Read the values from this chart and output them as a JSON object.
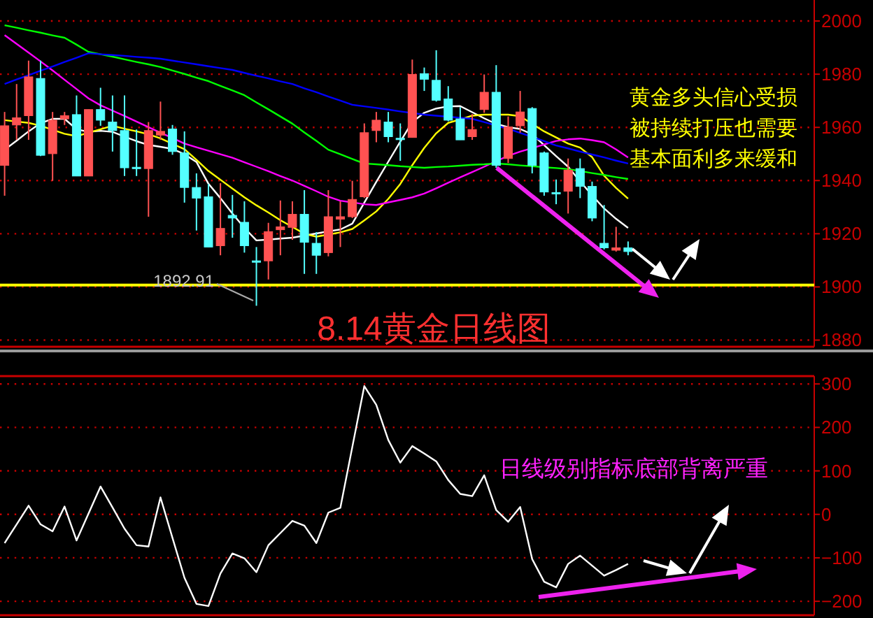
{
  "chart_data": [
    {
      "type": "candlestick",
      "title": "8.14黄金日线图",
      "categories": [
        null,
        null,
        null,
        null,
        null,
        null,
        null,
        null,
        null,
        null,
        null,
        null,
        null,
        null,
        null,
        null,
        null,
        null,
        null,
        null,
        null,
        null,
        null,
        null,
        null,
        null,
        null,
        null,
        null,
        null,
        null,
        null,
        null,
        null,
        null,
        null,
        null,
        null,
        null,
        null,
        null,
        null,
        null,
        null,
        null,
        null,
        null,
        null,
        null,
        null,
        null,
        null,
        null
      ],
      "ohlc": [
        [
          1945.7,
          1965.8,
          1934.3,
          1960.6
        ],
        [
          1960.9,
          1976.3,
          1955.3,
          1963.6
        ],
        [
          1964.4,
          1985.1,
          1955.3,
          1979.0
        ],
        [
          1978.4,
          1985.1,
          1949.2,
          1949.5
        ],
        [
          1950.1,
          1965.8,
          1939.9,
          1962.7
        ],
        [
          1963.2,
          1965.8,
          1960.9,
          1964.4
        ],
        [
          1964.8,
          1972.0,
          1941.7,
          1941.7
        ],
        [
          1941.7,
          1966.7,
          1941.7,
          1966.7
        ],
        [
          1966.7,
          1974.9,
          1960.6,
          1962.7
        ],
        [
          1962.0,
          1972.0,
          1950.9,
          1958.8
        ],
        [
          1958.8,
          1972.0,
          1941.7,
          1944.8
        ],
        [
          1945.0,
          1959.2,
          1941.7,
          1944.8
        ],
        [
          1944.5,
          1962.0,
          1926.4,
          1958.8
        ],
        [
          1957.1,
          1969.7,
          1955.3,
          1958.5
        ],
        [
          1959.4,
          1960.9,
          1949.7,
          1950.9
        ],
        [
          1950.4,
          1958.5,
          1931.7,
          1937.4
        ],
        [
          1937.4,
          1942.7,
          1921.2,
          1933.4
        ],
        [
          1933.9,
          1938.7,
          1915.0,
          1915.0
        ],
        [
          1915.5,
          1939.0,
          1911.9,
          1922.0
        ],
        [
          1926.9,
          1934.6,
          1918.5,
          1925.9
        ],
        [
          1924.3,
          1932.2,
          1912.9,
          1915.5
        ],
        [
          1909.8,
          1915.0,
          1892.91,
          1909.4
        ],
        [
          1909.8,
          1924.1,
          1902.8,
          1920.8
        ],
        [
          1921.5,
          1932.5,
          1911.9,
          1922.6
        ],
        [
          1922.4,
          1932.2,
          1917.7,
          1927.3
        ],
        [
          1927.3,
          1936.4,
          1904.9,
          1916.8
        ],
        [
          1916.4,
          1920.6,
          1904.9,
          1911.9
        ],
        [
          1912.9,
          1936.4,
          1911.5,
          1926.4
        ],
        [
          1925.5,
          1932.2,
          1915.0,
          1926.4
        ],
        [
          1926.4,
          1939.9,
          1925.9,
          1932.9
        ],
        [
          1933.9,
          1961.5,
          1933.4,
          1958.0
        ],
        [
          1958.8,
          1965.8,
          1954.4,
          1962.7
        ],
        [
          1962.0,
          1965.8,
          1954.4,
          1956.5
        ],
        [
          1955.9,
          1961.5,
          1947.4,
          1955.7
        ],
        [
          1956.2,
          1985.5,
          1956.2,
          1979.9
        ],
        [
          1980.2,
          1982.5,
          1973.7,
          1978.1
        ],
        [
          1977.7,
          1989.0,
          1969.7,
          1970.2
        ],
        [
          1970.7,
          1975.5,
          1962.3,
          1962.7
        ],
        [
          1963.2,
          1967.6,
          1955.3,
          1955.3
        ],
        [
          1956.5,
          1965.0,
          1955.3,
          1959.2
        ],
        [
          1966.7,
          1979.9,
          1965.5,
          1973.2
        ],
        [
          1973.2,
          1983.4,
          1944.8,
          1945.7
        ],
        [
          1948.3,
          1964.1,
          1946.6,
          1960.2
        ],
        [
          1960.6,
          1973.7,
          1958.0,
          1965.8
        ],
        [
          1967.1,
          1967.6,
          1942.7,
          1945.7
        ],
        [
          1950.4,
          1950.9,
          1934.3,
          1935.7
        ],
        [
          1935.5,
          1940.4,
          1931.1,
          1935.3
        ],
        [
          1936.0,
          1948.3,
          1927.6,
          1943.9
        ],
        [
          1944.5,
          1948.3,
          1933.4,
          1937.8
        ],
        [
          1937.8,
          1939.6,
          1924.7,
          1925.9
        ],
        [
          1916.4,
          1930.8,
          1914.1,
          1914.7
        ],
        [
          1913.8,
          1922.6,
          1913.3,
          1914.7
        ],
        [
          1914.7,
          1917.1,
          1911.9,
          1913.3
        ]
      ],
      "colors": [
        "#ff5252",
        "#ff5252",
        "#ff5252",
        "#54ffff",
        "#ff5252",
        "#ff5252",
        "#54ffff",
        "#ff5252",
        "#54ffff",
        "#54ffff",
        "#54ffff",
        "#54ffff",
        "#ff5252",
        "#ff5252",
        "#54ffff",
        "#54ffff",
        "#54ffff",
        "#54ffff",
        "#ff5252",
        "#54ffff",
        "#54ffff",
        "#54ffff",
        "#ff5252",
        "#ff5252",
        "#ff5252",
        "#54ffff",
        "#54ffff",
        "#ff5252",
        "#ff5252",
        "#ff5252",
        "#ff5252",
        "#ff5252",
        "#54ffff",
        "#54ffff",
        "#ff5252",
        "#54ffff",
        "#54ffff",
        "#54ffff",
        "#54ffff",
        "#ff5252",
        "#ff5252",
        "#54ffff",
        "#ff5252",
        "#ff5252",
        "#54ffff",
        "#54ffff",
        "#54ffff",
        "#ff5252",
        "#54ffff",
        "#54ffff",
        "#54ffff",
        "#ff5252",
        "#54ffff"
      ],
      "series": [
        {
          "type": "line",
          "color": "#ffffff",
          "values": [
            1951.6,
            1955.0,
            1958.5,
            1961.6,
            1963.2,
            1963.2,
            1959.3,
            1958.3,
            1958.7,
            1958.3,
            1956.5,
            1954.8,
            1953.4,
            1952.7,
            1951.9,
            1949.9,
            1947.0,
            1938.8,
            1933.4,
            1927.6,
            1922.2,
            1917.5,
            1917.8,
            1918.2,
            1918.5,
            1919.3,
            1920.1,
            1920.9,
            1921.6,
            1923.8,
            1931.7,
            1939.5,
            1947.1,
            1954.6,
            1962.0,
            1965.5,
            1967.1,
            1967.9,
            1968.0,
            1965.7,
            1963.4,
            1961.3,
            1960.1,
            1959.4,
            1957.4,
            1953.3,
            1949.2,
            1945.2,
            1939.7,
            1934.5,
            1929.5,
            1925.6,
            1922.2
          ]
        },
        {
          "type": "line",
          "color": "#ffff00",
          "values": [
            1962.7,
            1962.2,
            1961.7,
            1960.6,
            1959.1,
            1957.6,
            1956.7,
            1958.0,
            1959.3,
            1960.6,
            1959.5,
            1958.5,
            1957.4,
            1955.9,
            1953.8,
            1951.8,
            1947.8,
            1943.6,
            1940.3,
            1937.0,
            1933.7,
            1930.7,
            1928.0,
            1925.1,
            1922.6,
            1920.0,
            1918.9,
            1919.7,
            1920.5,
            1921.8,
            1925.0,
            1928.4,
            1933.1,
            1938.7,
            1945.8,
            1952.3,
            1957.8,
            1961.7,
            1963.0,
            1964.4,
            1964.8,
            1964.8,
            1964.8,
            1964.2,
            1961.3,
            1958.5,
            1956.2,
            1953.9,
            1952.4,
            1948.8,
            1941.8,
            1937.2,
            1933.2
          ]
        },
        {
          "type": "line",
          "color": "#ff00ff",
          "values": [
            1994.7,
            1991.4,
            1988.1,
            1984.8,
            1981.4,
            1977.9,
            1974.4,
            1970.9,
            1968.3,
            1966.3,
            1964.3,
            1962.2,
            1960.1,
            1958.0,
            1956.0,
            1953.9,
            1952.5,
            1951.2,
            1949.9,
            1948.6,
            1946.9,
            1945.2,
            1943.5,
            1941.7,
            1940.0,
            1938.0,
            1936.0,
            1933.9,
            1932.4,
            1931.8,
            1931.1,
            1930.8,
            1931.8,
            1932.7,
            1933.7,
            1935.1,
            1937.1,
            1939.2,
            1941.2,
            1943.2,
            1945.2,
            1947.3,
            1949.3,
            1950.9,
            1952.2,
            1953.6,
            1954.9,
            1955.5,
            1955.8,
            1955.2,
            1954.4,
            1951.7,
            1948.7
          ]
        },
        {
          "type": "line",
          "color": "#00ff00",
          "values": [
            1998.4,
            1997.5,
            1996.5,
            1995.6,
            1994.6,
            1993.7,
            1991.1,
            1988.4,
            1987.5,
            1986.6,
            1985.6,
            1984.6,
            1983.7,
            1982.7,
            1981.4,
            1980.1,
            1978.7,
            1977.4,
            1975.6,
            1973.9,
            1972.1,
            1969.4,
            1966.8,
            1964.1,
            1961.4,
            1958.1,
            1954.9,
            1951.6,
            1949.9,
            1948.1,
            1946.4,
            1946.1,
            1945.8,
            1945.4,
            1945.1,
            1944.8,
            1945.1,
            1945.3,
            1945.6,
            1945.9,
            1946.1,
            1946.4,
            1946.1,
            1945.7,
            1945.4,
            1945.0,
            1944.7,
            1944.3,
            1943.6,
            1942.8,
            1942.1,
            1941.3,
            1940.6
          ]
        },
        {
          "type": "line",
          "color": "#0000ff",
          "values": [
            1976.3,
            1978.0,
            1979.6,
            1981.3,
            1982.9,
            1984.6,
            1986.2,
            1987.9,
            1987.5,
            1987.2,
            1986.9,
            1986.5,
            1986.2,
            1985.8,
            1985.1,
            1984.4,
            1983.7,
            1983.0,
            1982.3,
            1981.6,
            1980.5,
            1979.4,
            1978.4,
            1977.3,
            1976.3,
            1974.7,
            1973.2,
            1971.6,
            1970.1,
            1968.5,
            1967.9,
            1967.3,
            1966.7,
            1966.0,
            1965.4,
            1964.8,
            1964.4,
            1964.0,
            1963.6,
            1963.2,
            1962.0,
            1960.7,
            1959.5,
            1957.9,
            1956.4,
            1954.8,
            1953.2,
            1952.1,
            1950.9,
            1949.8,
            1948.7,
            1947.5,
            1946.4
          ]
        }
      ],
      "ref_lines": [
        {
          "axis": "y",
          "value": 1900.7,
          "color": "#ffff00"
        }
      ],
      "annotations": [
        "黄金多头信心受损",
        "被持续打压也需要",
        "基本面利多来缓和",
        "1892.91"
      ],
      "ylim": [
        1877.5,
        2007.9
      ],
      "yticks": [
        1880,
        1900,
        1920,
        1940,
        1960,
        1980,
        2000
      ],
      "grid": "y"
    },
    {
      "type": "line",
      "categories": [
        null,
        null,
        null,
        null,
        null,
        null,
        null,
        null,
        null,
        null,
        null,
        null,
        null,
        null,
        null,
        null,
        null,
        null,
        null,
        null,
        null,
        null,
        null,
        null,
        null,
        null,
        null,
        null,
        null,
        null,
        null,
        null,
        null,
        null,
        null,
        null,
        null,
        null,
        null,
        null,
        null,
        null,
        null,
        null,
        null,
        null,
        null,
        null,
        null,
        null,
        null,
        null,
        null
      ],
      "series": [
        {
          "color": "#ffffff",
          "values": [
            -66,
            -23,
            20,
            -23,
            -39,
            18,
            -60,
            2,
            64,
            16,
            -33,
            -71,
            -74,
            39,
            -54,
            -146,
            -206,
            -211,
            -136,
            -90,
            -101,
            -133,
            -71,
            -43,
            -15,
            -26,
            -66,
            4,
            15,
            155,
            295,
            252,
            171,
            119,
            157,
            140,
            122,
            79,
            47,
            42,
            90,
            10,
            -17,
            17,
            -103,
            -155,
            -168,
            -114,
            -95,
            -118,
            -141,
            -128,
            -114
          ]
        }
      ],
      "annotations": [
        "日线级别指标底部背离严重"
      ],
      "ylim": [
        -232,
        318
      ],
      "yticks": [
        -200,
        -100,
        0,
        100,
        200,
        300
      ],
      "grid": "y"
    }
  ]
}
